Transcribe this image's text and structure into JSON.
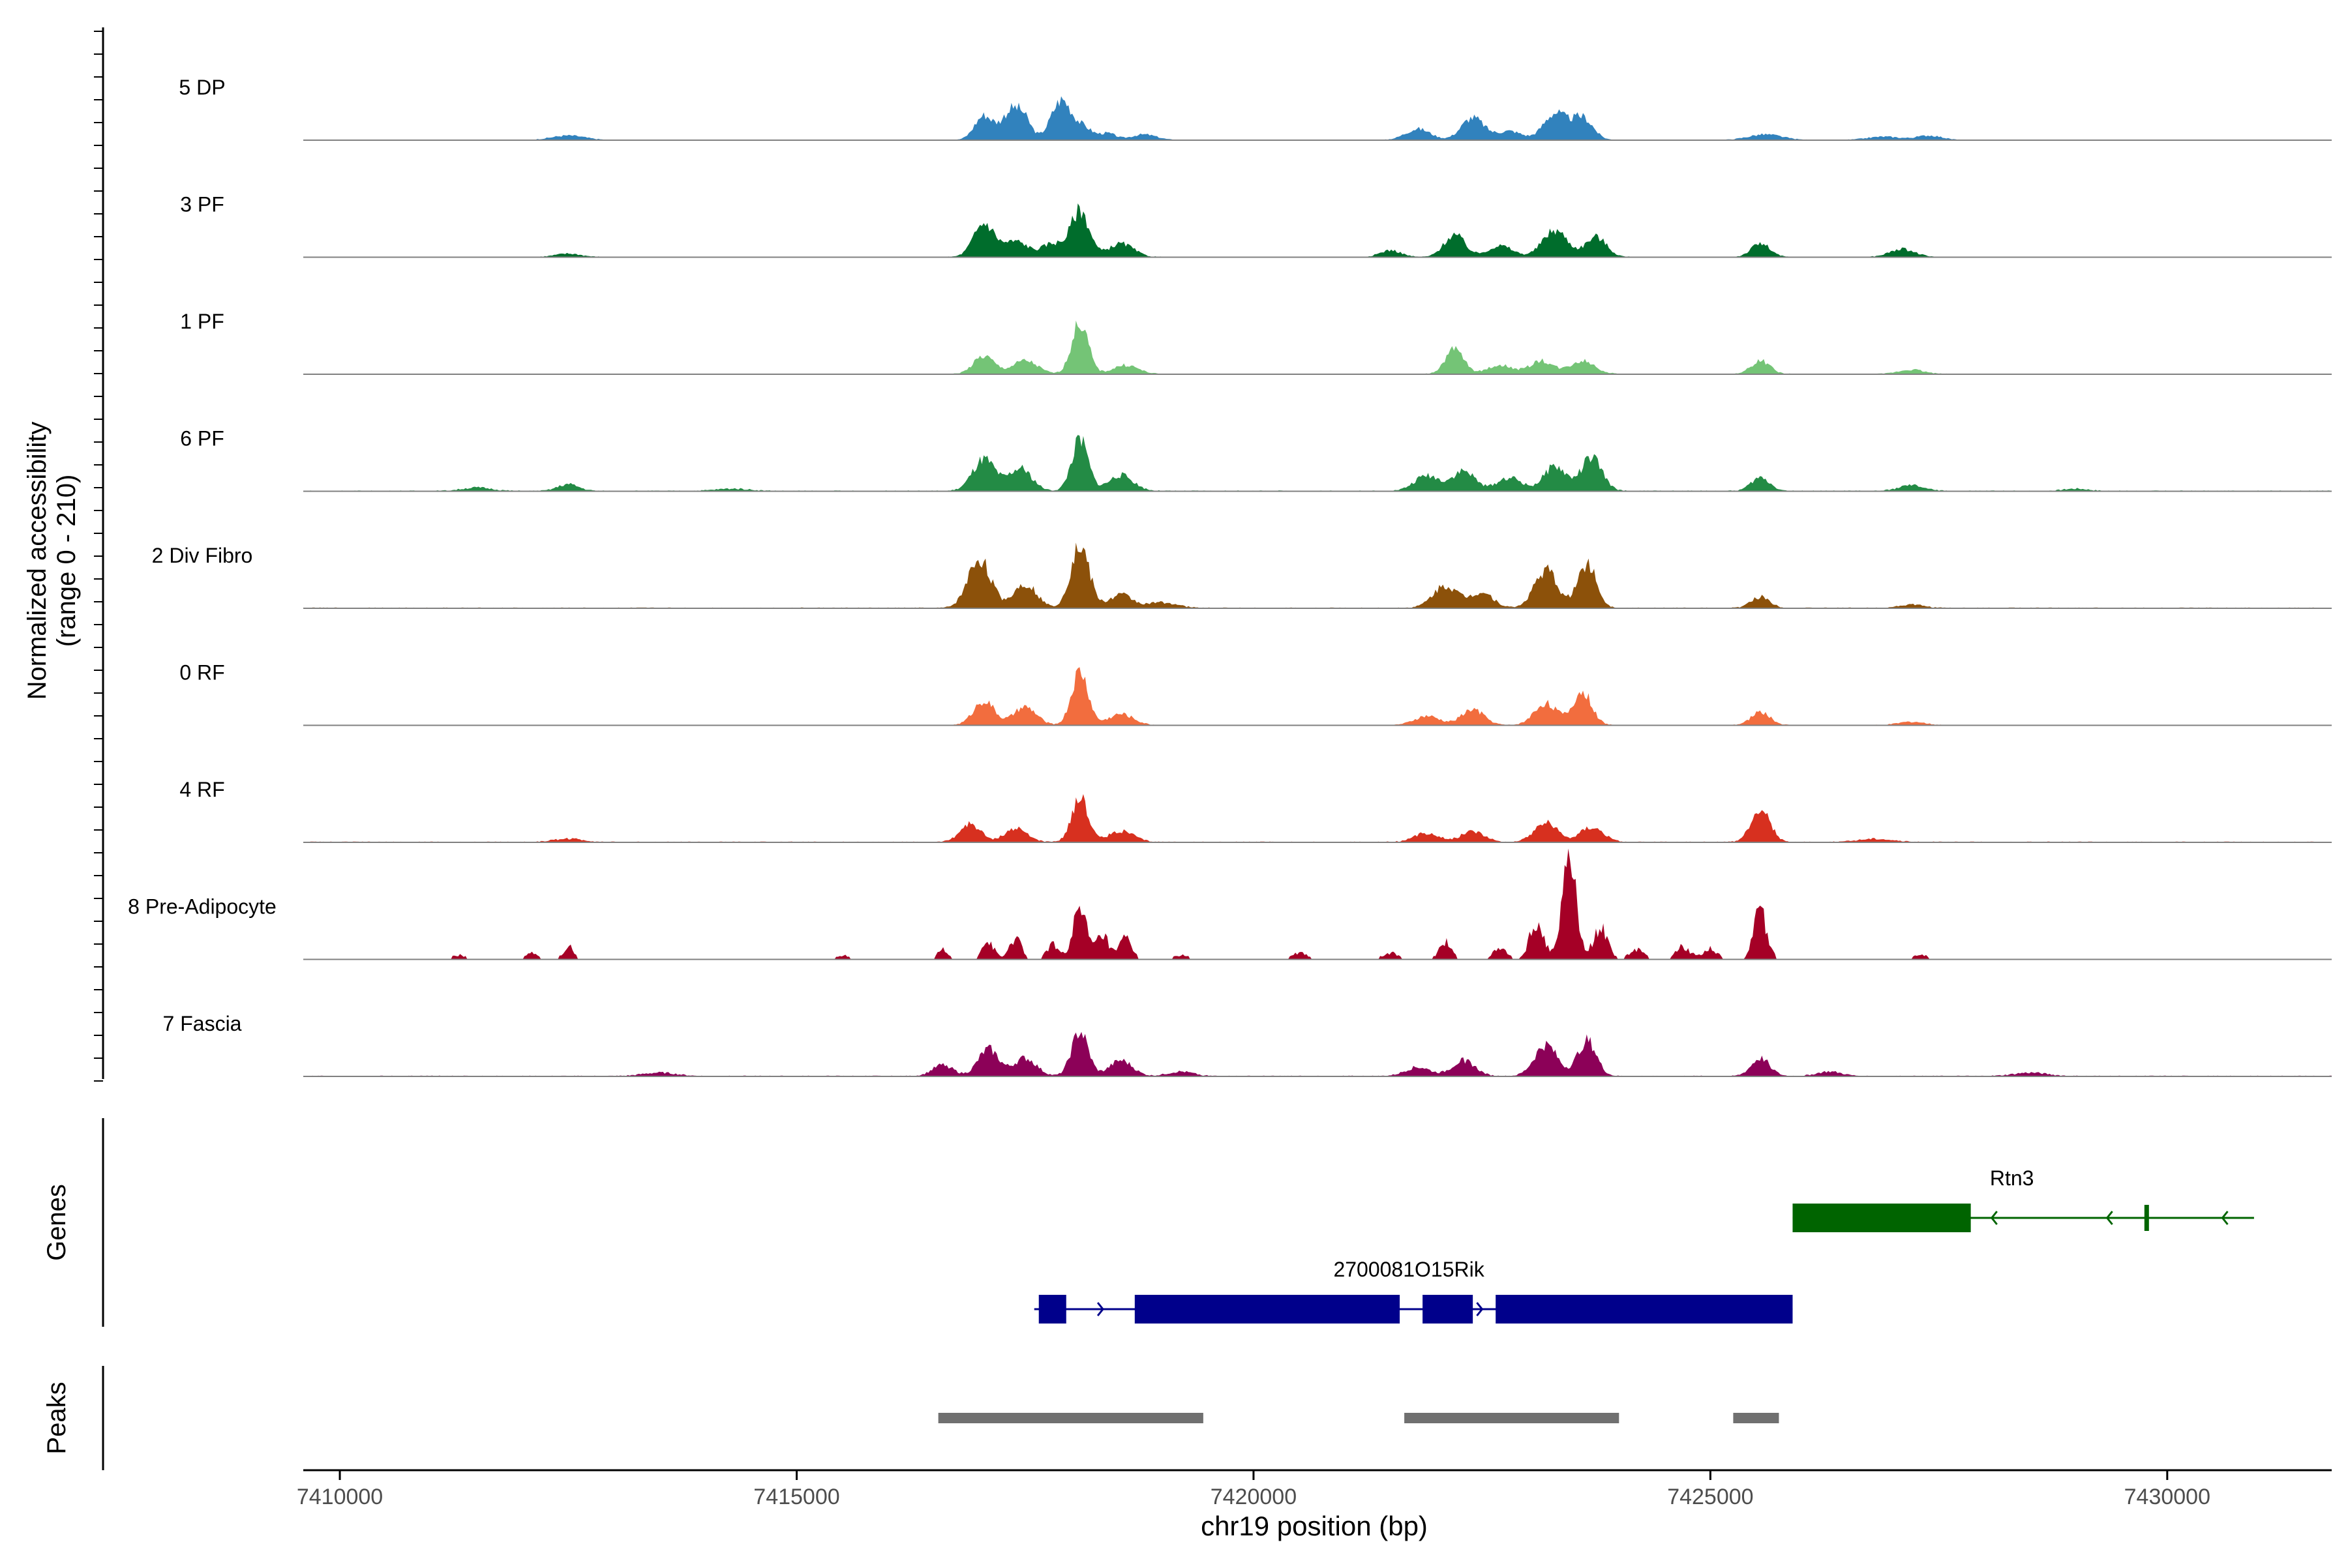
{
  "chart_data": {
    "type": "area",
    "title": "",
    "ylabel_line1": "Normalized accessibility",
    "ylabel_line2": "(range 0 - 210)",
    "yrange": [
      0,
      210
    ],
    "xlabel": "chr19 position (bp)",
    "xlim": [
      7409600,
      7431800
    ],
    "x_ticks": [
      7410000,
      7415000,
      7420000,
      7425000,
      7430000
    ],
    "x_tick_labels": [
      "7410000",
      "7415000",
      "7420000",
      "7425000",
      "7430000"
    ],
    "tracks": [
      {
        "name": "5 DP",
        "color": "#3182BD",
        "peaks": [
          [
            7417050,
            0.22,
            45
          ],
          [
            7417350,
            0.26,
            45
          ],
          [
            7417500,
            0.14,
            35
          ],
          [
            7417900,
            0.36,
            50
          ],
          [
            7418150,
            0.1,
            40
          ],
          [
            7418400,
            0.06,
            40
          ],
          [
            7418800,
            0.05,
            60
          ],
          [
            7421800,
            0.1,
            60
          ],
          [
            7422400,
            0.2,
            55
          ],
          [
            7422800,
            0.08,
            60
          ],
          [
            7423300,
            0.24,
            55
          ],
          [
            7423600,
            0.2,
            50
          ],
          [
            7412500,
            0.04,
            80
          ],
          [
            7425600,
            0.05,
            80
          ],
          [
            7426900,
            0.03,
            80
          ],
          [
            7427400,
            0.04,
            60
          ]
        ],
        "base": 0.004
      },
      {
        "name": "3 PF",
        "color": "#006D2C",
        "peaks": [
          [
            7417050,
            0.3,
            50
          ],
          [
            7417400,
            0.14,
            60
          ],
          [
            7417800,
            0.12,
            50
          ],
          [
            7418100,
            0.42,
            45
          ],
          [
            7418550,
            0.12,
            60
          ],
          [
            7421500,
            0.06,
            50
          ],
          [
            7422200,
            0.2,
            50
          ],
          [
            7422700,
            0.1,
            60
          ],
          [
            7423300,
            0.24,
            60
          ],
          [
            7423750,
            0.18,
            50
          ],
          [
            7425550,
            0.12,
            45
          ],
          [
            7427100,
            0.07,
            60
          ],
          [
            7412500,
            0.03,
            60
          ]
        ],
        "base": 0.006
      },
      {
        "name": "1 PF",
        "color": "#74C476",
        "peaks": [
          [
            7417050,
            0.16,
            50
          ],
          [
            7417500,
            0.12,
            60
          ],
          [
            7418100,
            0.46,
            40
          ],
          [
            7418600,
            0.08,
            60
          ],
          [
            7422200,
            0.22,
            45
          ],
          [
            7422700,
            0.08,
            60
          ],
          [
            7423150,
            0.12,
            55
          ],
          [
            7423600,
            0.12,
            60
          ],
          [
            7425550,
            0.12,
            45
          ],
          [
            7427200,
            0.04,
            60
          ]
        ],
        "base": 0.006
      },
      {
        "name": "6 PF",
        "color": "#238B45",
        "peaks": [
          [
            7417050,
            0.28,
            55
          ],
          [
            7417450,
            0.2,
            55
          ],
          [
            7418100,
            0.46,
            40
          ],
          [
            7418550,
            0.14,
            60
          ],
          [
            7421900,
            0.14,
            60
          ],
          [
            7422300,
            0.18,
            55
          ],
          [
            7422800,
            0.12,
            60
          ],
          [
            7423300,
            0.22,
            55
          ],
          [
            7423700,
            0.3,
            50
          ],
          [
            7425550,
            0.12,
            45
          ],
          [
            7427200,
            0.05,
            60
          ],
          [
            7411500,
            0.03,
            70
          ],
          [
            7412500,
            0.06,
            50
          ],
          [
            7414300,
            0.02,
            80
          ],
          [
            7429000,
            0.02,
            60
          ]
        ],
        "base": 0.008
      },
      {
        "name": "2 Div Fibro",
        "color": "#8C510A",
        "peaks": [
          [
            7417000,
            0.44,
            55
          ],
          [
            7417500,
            0.22,
            55
          ],
          [
            7418100,
            0.56,
            45
          ],
          [
            7418550,
            0.12,
            55
          ],
          [
            7419000,
            0.05,
            70
          ],
          [
            7422100,
            0.2,
            60
          ],
          [
            7422500,
            0.14,
            55
          ],
          [
            7423200,
            0.34,
            55
          ],
          [
            7423650,
            0.4,
            45
          ],
          [
            7425550,
            0.1,
            45
          ],
          [
            7427200,
            0.03,
            60
          ]
        ],
        "base": 0.008
      },
      {
        "name": "0 RF",
        "color": "#F26D3E",
        "peaks": [
          [
            7417050,
            0.22,
            50
          ],
          [
            7417500,
            0.16,
            55
          ],
          [
            7418100,
            0.48,
            40
          ],
          [
            7418550,
            0.1,
            60
          ],
          [
            7421900,
            0.08,
            60
          ],
          [
            7422400,
            0.14,
            55
          ],
          [
            7423200,
            0.2,
            55
          ],
          [
            7423600,
            0.3,
            45
          ],
          [
            7425550,
            0.12,
            45
          ],
          [
            7427200,
            0.03,
            60
          ]
        ],
        "base": 0.006
      },
      {
        "name": "4 RF",
        "color": "#D7301F",
        "peaks": [
          [
            7416900,
            0.16,
            50
          ],
          [
            7417400,
            0.12,
            55
          ],
          [
            7418100,
            0.4,
            40
          ],
          [
            7418550,
            0.1,
            60
          ],
          [
            7421900,
            0.08,
            60
          ],
          [
            7422400,
            0.1,
            55
          ],
          [
            7423200,
            0.18,
            55
          ],
          [
            7423700,
            0.14,
            55
          ],
          [
            7425550,
            0.3,
            45
          ],
          [
            7412500,
            0.03,
            70
          ],
          [
            7426800,
            0.03,
            80
          ]
        ],
        "base": 0.008
      },
      {
        "name": "8 Pre-Adipocyte",
        "color": "#A50026",
        "peaks": [
          [
            7416600,
            0.1,
            25
          ],
          [
            7417100,
            0.16,
            30
          ],
          [
            7417400,
            0.2,
            28
          ],
          [
            7417800,
            0.14,
            30
          ],
          [
            7418100,
            0.44,
            35
          ],
          [
            7418350,
            0.22,
            30
          ],
          [
            7418600,
            0.2,
            30
          ],
          [
            7419200,
            0.04,
            40
          ],
          [
            7420500,
            0.06,
            40
          ],
          [
            7421500,
            0.06,
            40
          ],
          [
            7422100,
            0.16,
            30
          ],
          [
            7422700,
            0.1,
            35
          ],
          [
            7423100,
            0.34,
            35
          ],
          [
            7423450,
            0.92,
            35
          ],
          [
            7423800,
            0.3,
            35
          ],
          [
            7424200,
            0.1,
            35
          ],
          [
            7424700,
            0.12,
            35
          ],
          [
            7425000,
            0.1,
            35
          ],
          [
            7425550,
            0.46,
            32
          ],
          [
            7411300,
            0.04,
            35
          ],
          [
            7412500,
            0.12,
            25
          ],
          [
            7412100,
            0.06,
            30
          ],
          [
            7415500,
            0.04,
            35
          ],
          [
            7427300,
            0.04,
            40
          ],
          [
            7431000,
            0.02,
            20
          ]
        ],
        "base": 0.0,
        "sparse": true
      },
      {
        "name": "7 Fascia",
        "color": "#8C0158",
        "peaks": [
          [
            7416600,
            0.1,
            50
          ],
          [
            7417100,
            0.24,
            50
          ],
          [
            7417500,
            0.16,
            55
          ],
          [
            7418100,
            0.4,
            40
          ],
          [
            7418550,
            0.14,
            55
          ],
          [
            7419200,
            0.04,
            60
          ],
          [
            7421800,
            0.08,
            60
          ],
          [
            7422300,
            0.14,
            55
          ],
          [
            7423200,
            0.28,
            55
          ],
          [
            7423650,
            0.32,
            45
          ],
          [
            7425550,
            0.16,
            45
          ],
          [
            7426300,
            0.04,
            60
          ],
          [
            7413500,
            0.03,
            80
          ],
          [
            7428500,
            0.03,
            80
          ]
        ],
        "base": 0.008
      }
    ],
    "genes_label": "Genes",
    "peaks_label": "Peaks",
    "genes": [
      {
        "name": "Rtn3",
        "color": "#006400",
        "strand": "-",
        "start": 7425900,
        "end": 7430950,
        "exons": [
          [
            7425900,
            7427850
          ],
          [
            7429750,
            7429800
          ]
        ]
      },
      {
        "name": "2700081O15Rik",
        "color": "#00008B",
        "strand": "+",
        "start": 7417600,
        "end": 7425900,
        "exons": [
          [
            7417650,
            7417950
          ],
          [
            7418700,
            7421600
          ],
          [
            7421850,
            7422400
          ],
          [
            7422650,
            7425900
          ]
        ]
      }
    ],
    "peak_regions": [
      [
        7416550,
        7419450
      ],
      [
        7421650,
        7424000
      ],
      [
        7425250,
        7425750
      ]
    ],
    "peak_color": "#707070"
  }
}
